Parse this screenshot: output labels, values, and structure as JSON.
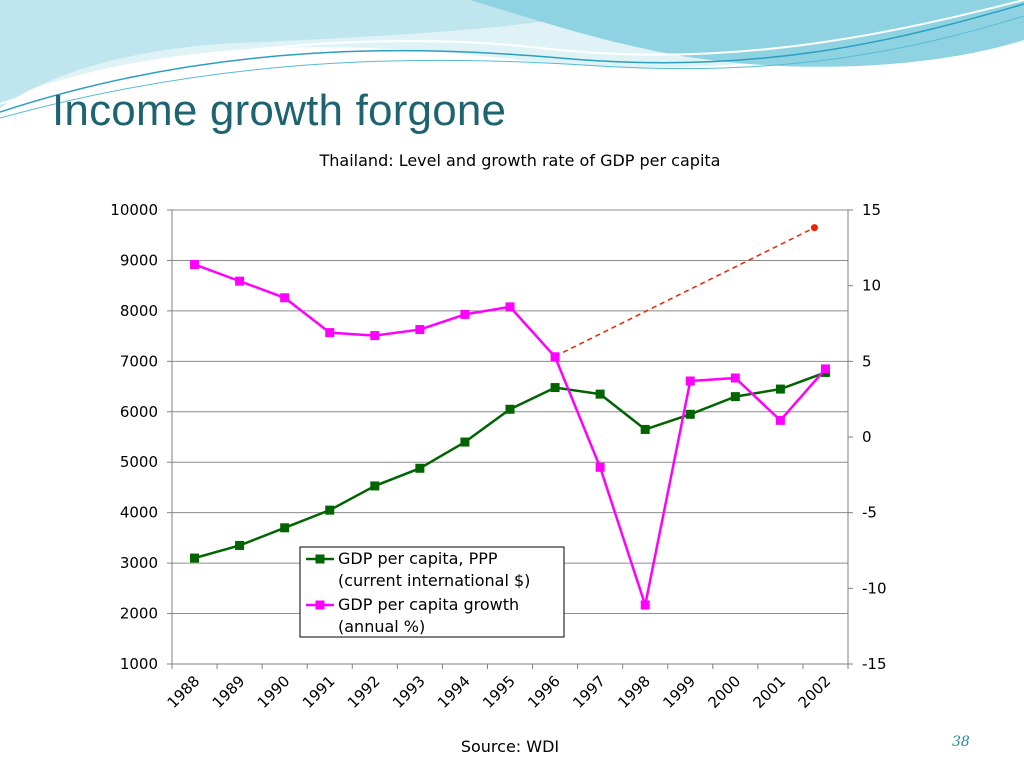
{
  "slide": {
    "title": "Income growth forgone",
    "source": "Source: WDI",
    "page_number": "38"
  },
  "chart_data": {
    "type": "line",
    "title": "Thailand: Level and growth rate of GDP per capita",
    "categories": [
      "1988",
      "1989",
      "1990",
      "1991",
      "1992",
      "1993",
      "1994",
      "1995",
      "1996",
      "1997",
      "1998",
      "1999",
      "2000",
      "2001",
      "2002"
    ],
    "y_left": {
      "lim": [
        1000,
        10000
      ],
      "ticks": [
        "1000",
        "2000",
        "3000",
        "4000",
        "5000",
        "6000",
        "7000",
        "8000",
        "9000",
        "10000"
      ]
    },
    "y_right": {
      "lim": [
        -15,
        15
      ],
      "ticks": [
        "-15",
        "-10",
        "-5",
        "0",
        "5",
        "10",
        "15"
      ]
    },
    "grid": true,
    "legend_position": "bottom-center",
    "series": [
      {
        "name": "GDP per capita, PPP (current international $)",
        "legend_lines": [
          "GDP per capita, PPP",
          "(current international $)"
        ],
        "axis": "left",
        "color": "#006400",
        "marker": "square",
        "values": [
          3100,
          3350,
          3700,
          4050,
          4530,
          4880,
          5400,
          6050,
          6480,
          6350,
          5650,
          5950,
          6300,
          6450,
          6780
        ]
      },
      {
        "name": "GDP per capita growth (annual %)",
        "legend_lines": [
          "GDP per capita growth",
          "(annual %)"
        ],
        "axis": "right",
        "color": "#ff00ff",
        "marker": "square",
        "values": [
          11.4,
          10.3,
          9.2,
          6.9,
          6.7,
          7.1,
          8.1,
          8.6,
          5.3,
          -2.0,
          -11.1,
          3.7,
          3.9,
          1.1,
          4.5
        ]
      }
    ],
    "annotation": {
      "type": "dashed-trend-line",
      "color": "#ee2200",
      "from": {
        "x": "1996",
        "y": 7100
      },
      "to": {
        "x": "2002",
        "y": 9650
      }
    }
  }
}
